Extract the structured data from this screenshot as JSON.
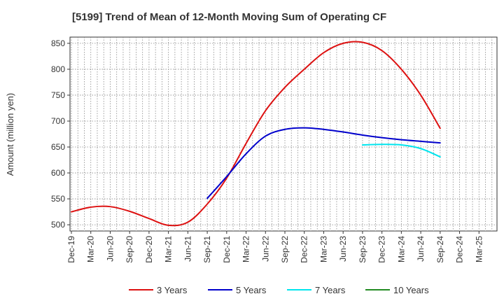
{
  "chart_data": {
    "type": "line",
    "title": "[5199]  Trend of Mean of 12-Month Moving Sum of Operating CF",
    "xlabel": "",
    "ylabel": "Amount (million yen)",
    "ylim": [
      488,
      862
    ],
    "yticks": [
      500,
      550,
      600,
      650,
      700,
      750,
      800,
      850
    ],
    "categories": [
      "Dec-19",
      "Mar-20",
      "Jun-20",
      "Sep-20",
      "Dec-20",
      "Mar-21",
      "Jun-21",
      "Sep-21",
      "Dec-21",
      "Mar-22",
      "Jun-22",
      "Sep-22",
      "Dec-22",
      "Mar-23",
      "Jun-23",
      "Sep-23",
      "Dec-23",
      "Mar-24",
      "Jun-24",
      "Sep-24",
      "Dec-24",
      "Mar-25"
    ],
    "grid": true,
    "legend_position": "bottom",
    "series": [
      {
        "name": "3 Years",
        "color": "#dd1111",
        "values": [
          525,
          534,
          535,
          526,
          512,
          499,
          505,
          540,
          590,
          657,
          720,
          765,
          800,
          832,
          850,
          852,
          836,
          800,
          750,
          686,
          null,
          null
        ]
      },
      {
        "name": "5 Years",
        "color": "#0000cc",
        "values": [
          null,
          null,
          null,
          null,
          null,
          null,
          null,
          551,
          593,
          637,
          671,
          684,
          687,
          684,
          679,
          673,
          668,
          664,
          661,
          658,
          null,
          null
        ]
      },
      {
        "name": "7 Years",
        "color": "#00e5ee",
        "values": [
          null,
          null,
          null,
          null,
          null,
          null,
          null,
          null,
          null,
          null,
          null,
          null,
          null,
          null,
          null,
          654,
          655,
          654,
          647,
          631,
          null,
          null
        ]
      },
      {
        "name": "10 Years",
        "color": "#228b22",
        "values": [
          null,
          null,
          null,
          null,
          null,
          null,
          null,
          null,
          null,
          null,
          null,
          null,
          null,
          null,
          null,
          null,
          null,
          null,
          null,
          null,
          null,
          null
        ]
      }
    ]
  }
}
